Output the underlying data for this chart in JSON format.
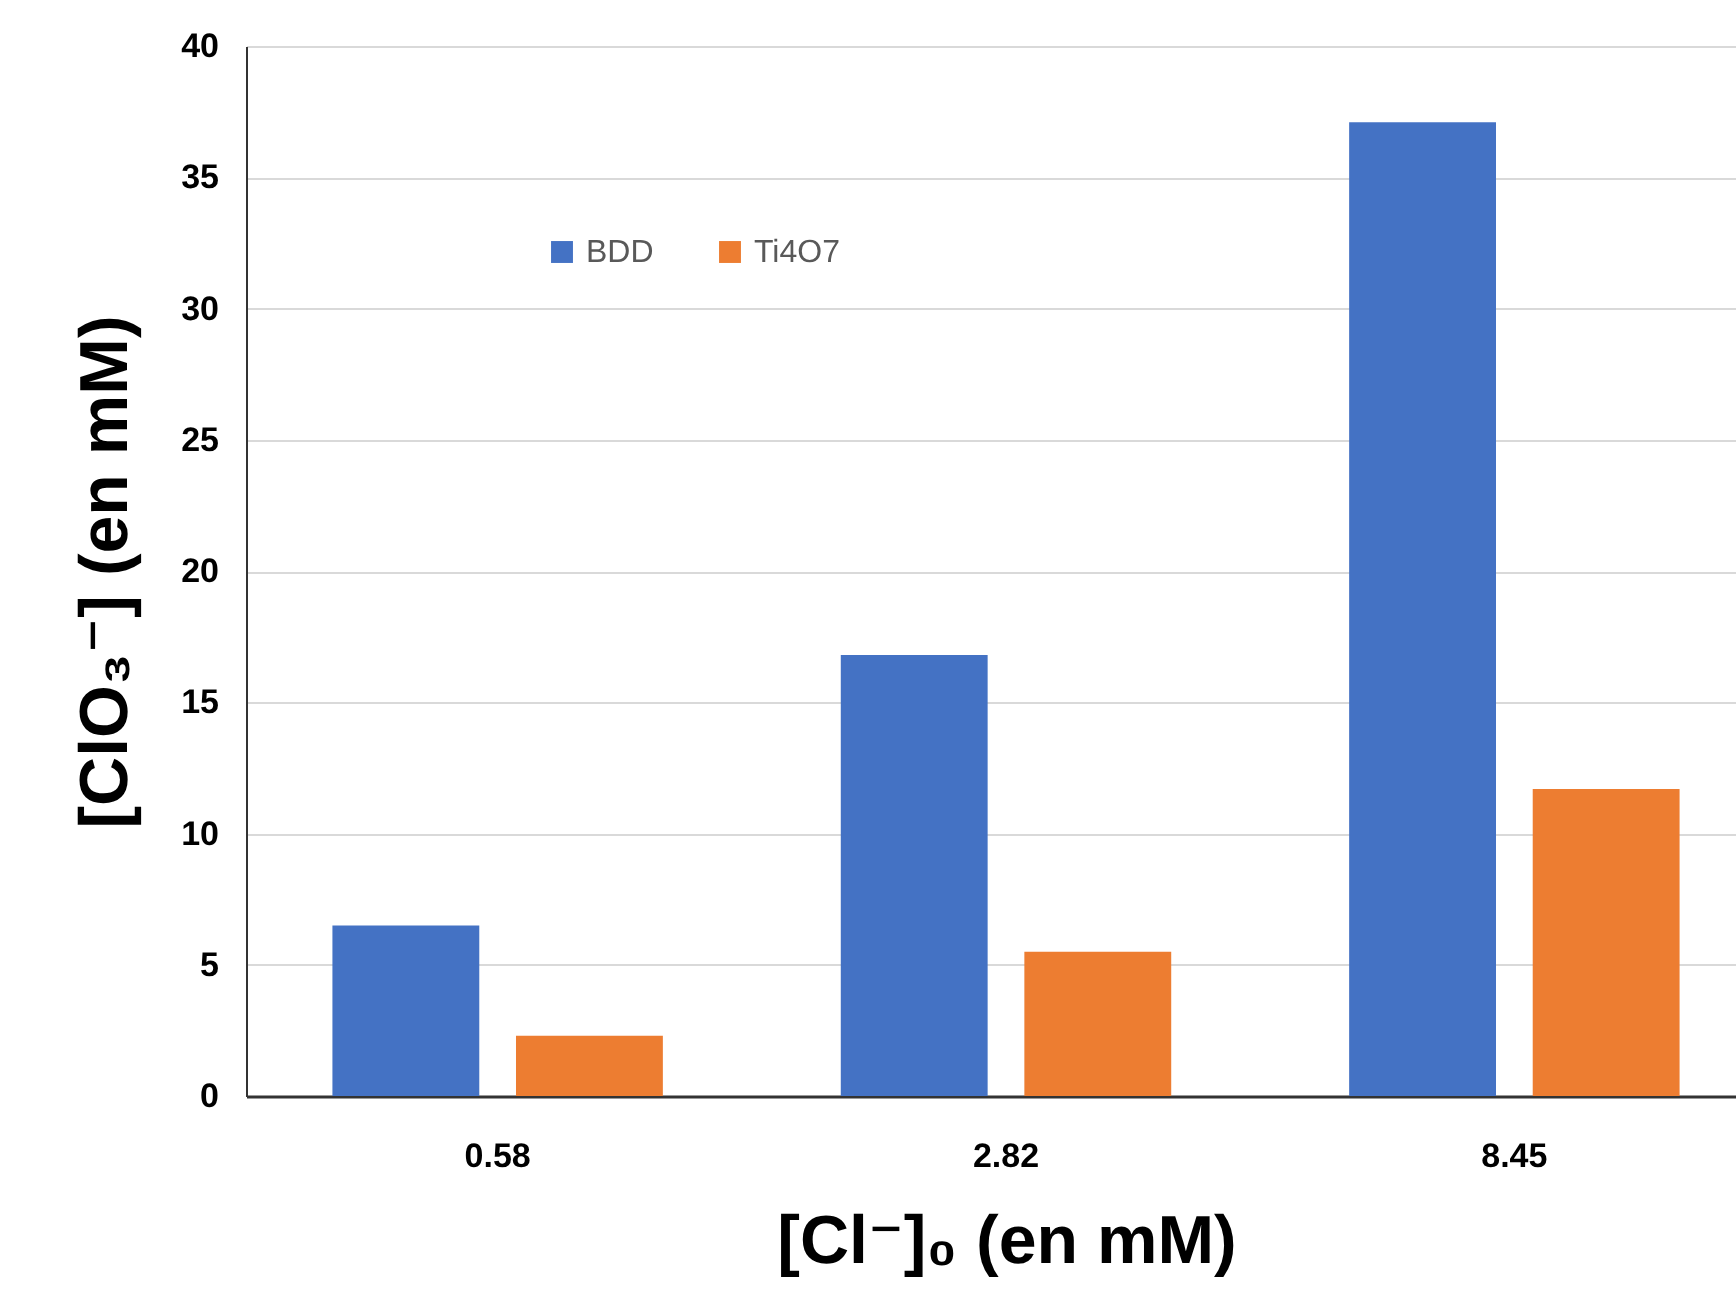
{
  "chart_data": {
    "type": "bar",
    "xlabel": "[Cl⁻]₀ (en mM)",
    "ylabel": "[ClO₃⁻] (en mM)",
    "categories": [
      "0.58",
      "2.82",
      "8.45"
    ],
    "series": [
      {
        "name": "BDD",
        "color": "#4472c4",
        "values": [
          6.5,
          16.8,
          37.1
        ]
      },
      {
        "name": "Ti4O7",
        "color": "#ed7d31",
        "values": [
          2.3,
          5.5,
          11.7
        ]
      }
    ],
    "ylim": [
      0,
      40
    ],
    "yticks": [
      0,
      5,
      10,
      15,
      20,
      25,
      30,
      35,
      40
    ],
    "grid": "y",
    "legend": "top left"
  }
}
